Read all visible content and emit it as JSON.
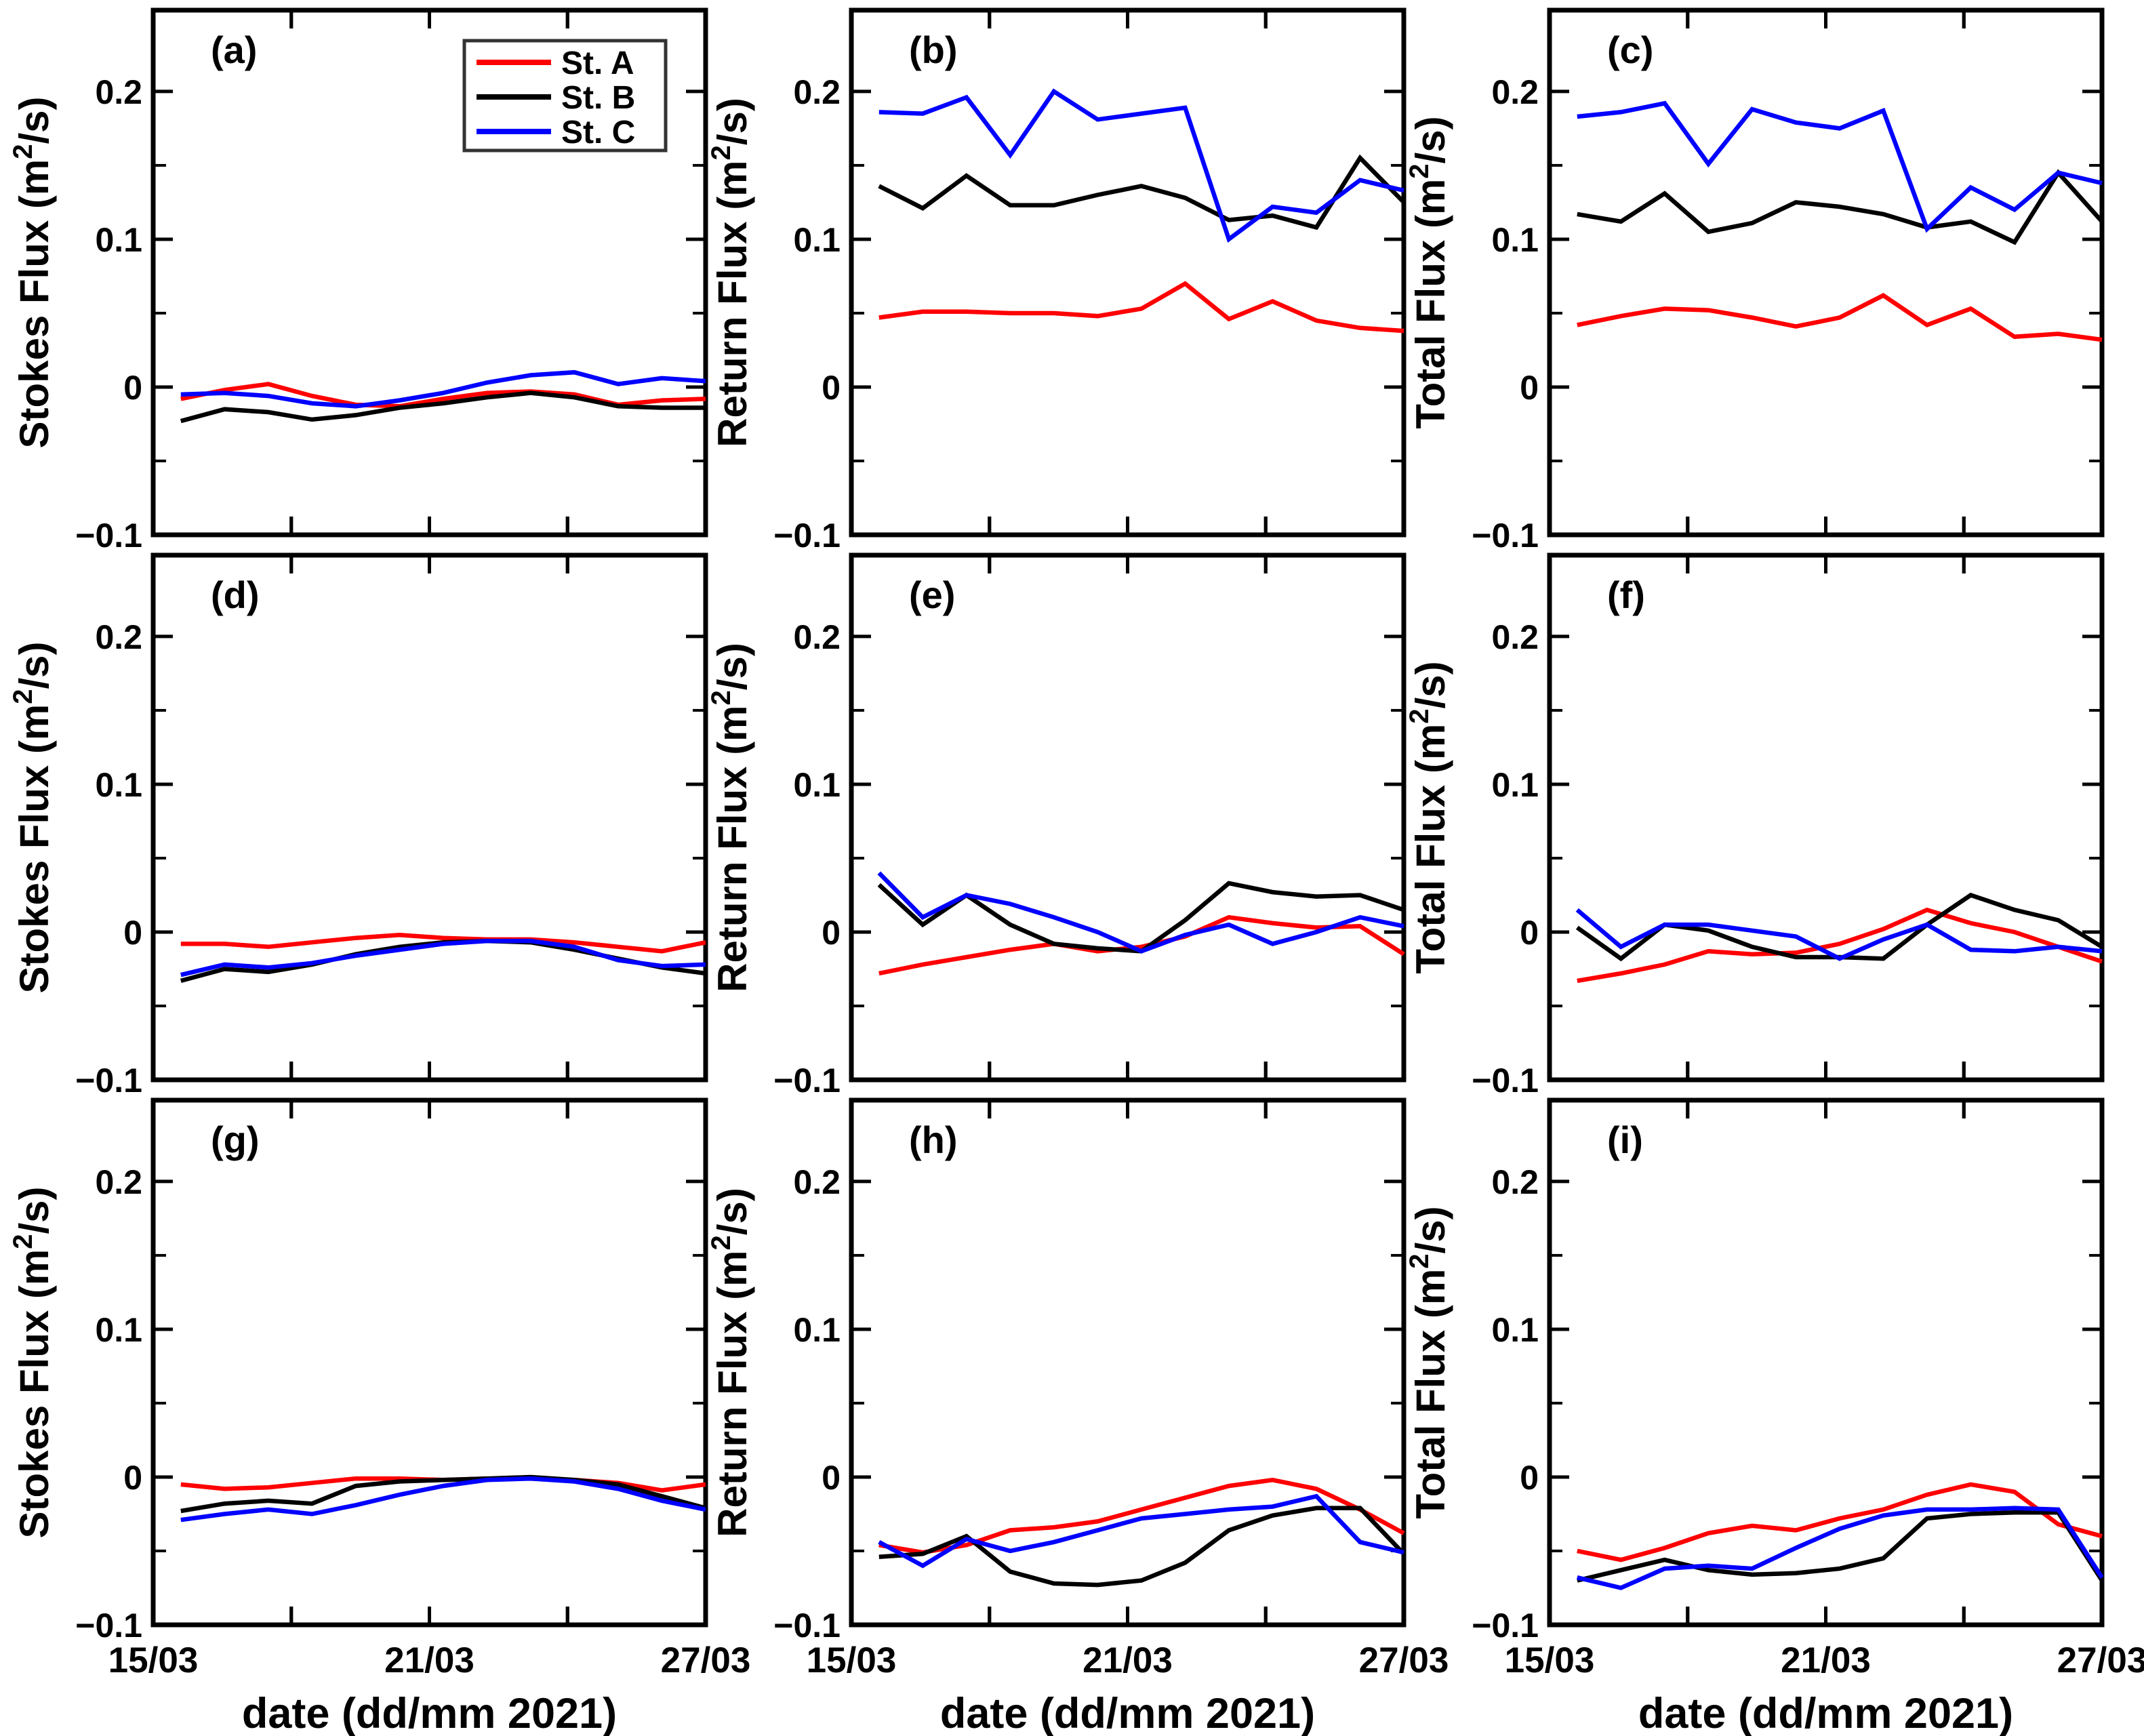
{
  "figure": {
    "background": "#ffffff",
    "axis_color": "#000000",
    "xlabel": "date (dd/mm 2021)",
    "x_tick_labels": [
      {
        "label": "15/03",
        "day": 0
      },
      {
        "label": "21/03",
        "day": 6
      },
      {
        "label": "27/03",
        "day": 12
      }
    ],
    "x_minor_tick_days": [
      3,
      9
    ],
    "x_major_tick_days": [
      3,
      6,
      9
    ],
    "y_ticks": [
      {
        "label": "0.2",
        "value": 0.2
      },
      {
        "label": "0.1",
        "value": 0.1
      },
      {
        "label": "0",
        "value": 0
      },
      {
        "label": "−0.1",
        "value": -0.1
      }
    ],
    "y_minor_tick_values": [
      0.15,
      0.05,
      -0.05
    ],
    "ylim": [
      -0.1,
      0.255
    ],
    "xlim_days": [
      0,
      12
    ],
    "grid": false
  },
  "legend": {
    "position": "top-right-panel-a",
    "entries": [
      {
        "label": "St. A",
        "color": "#ff0000"
      },
      {
        "label": "St. B",
        "color": "#000000"
      },
      {
        "label": "St. C",
        "color": "#0000ff"
      }
    ]
  },
  "chart_data": {
    "type": "line",
    "title": "",
    "xlabel": "date (dd/mm 2021)",
    "x_days": [
      0.6,
      1.55,
      2.5,
      3.45,
      4.4,
      5.35,
      6.3,
      7.25,
      8.2,
      9.15,
      10.1,
      11.05,
      12.0
    ],
    "x_axis_note": "days after 15/03/2021; ticks at 15/03, 18/03, 21/03, 24/03, 27/03; labels at 15/03, 21/03, 27/03",
    "units": "m²/s",
    "panels": [
      {
        "id": "a",
        "label": "(a)",
        "row": 0,
        "col": 0,
        "ylabel": "Stokes Flux (m²/s)",
        "show_legend": true,
        "series": [
          {
            "name": "St. A",
            "color": "#ff0000",
            "values": [
              -0.008,
              -0.002,
              0.002,
              -0.006,
              -0.012,
              -0.013,
              -0.008,
              -0.004,
              -0.003,
              -0.005,
              -0.012,
              -0.009,
              -0.008
            ]
          },
          {
            "name": "St. B",
            "color": "#000000",
            "values": [
              -0.023,
              -0.015,
              -0.017,
              -0.022,
              -0.019,
              -0.014,
              -0.011,
              -0.007,
              -0.004,
              -0.007,
              -0.013,
              -0.014,
              -0.014
            ]
          },
          {
            "name": "St. C",
            "color": "#0000ff",
            "values": [
              -0.005,
              -0.004,
              -0.006,
              -0.011,
              -0.013,
              -0.009,
              -0.004,
              0.003,
              0.008,
              0.01,
              0.002,
              0.006,
              0.004
            ]
          }
        ]
      },
      {
        "id": "b",
        "label": "(b)",
        "row": 0,
        "col": 1,
        "ylabel": "Return Flux (m²/s)",
        "show_legend": false,
        "series": [
          {
            "name": "St. A",
            "color": "#ff0000",
            "values": [
              0.047,
              0.051,
              0.051,
              0.05,
              0.05,
              0.048,
              0.053,
              0.07,
              0.046,
              0.058,
              0.045,
              0.04,
              0.038
            ]
          },
          {
            "name": "St. B",
            "color": "#000000",
            "values": [
              0.136,
              0.121,
              0.143,
              0.123,
              0.123,
              0.13,
              0.136,
              0.128,
              0.113,
              0.116,
              0.108,
              0.155,
              0.125
            ]
          },
          {
            "name": "St. C",
            "color": "#0000ff",
            "values": [
              0.186,
              0.185,
              0.196,
              0.157,
              0.2,
              0.181,
              0.185,
              0.189,
              0.1,
              0.122,
              0.118,
              0.14,
              0.133
            ]
          }
        ]
      },
      {
        "id": "c",
        "label": "(c)",
        "row": 0,
        "col": 2,
        "ylabel": "Total Flux (m²/s)",
        "show_legend": false,
        "series": [
          {
            "name": "St. A",
            "color": "#ff0000",
            "values": [
              0.042,
              0.048,
              0.053,
              0.052,
              0.047,
              0.041,
              0.047,
              0.062,
              0.042,
              0.053,
              0.034,
              0.036,
              0.032
            ]
          },
          {
            "name": "St. B",
            "color": "#000000",
            "values": [
              0.117,
              0.112,
              0.131,
              0.105,
              0.111,
              0.125,
              0.122,
              0.117,
              0.108,
              0.112,
              0.098,
              0.145,
              0.112
            ]
          },
          {
            "name": "St. C",
            "color": "#0000ff",
            "values": [
              0.183,
              0.186,
              0.192,
              0.151,
              0.188,
              0.179,
              0.175,
              0.187,
              0.107,
              0.135,
              0.12,
              0.145,
              0.138
            ]
          }
        ]
      },
      {
        "id": "d",
        "label": "(d)",
        "row": 1,
        "col": 0,
        "ylabel": "Stokes Flux (m²/s)",
        "show_legend": false,
        "series": [
          {
            "name": "St. A",
            "color": "#ff0000",
            "values": [
              -0.008,
              -0.008,
              -0.01,
              -0.007,
              -0.004,
              -0.002,
              -0.004,
              -0.005,
              -0.005,
              -0.007,
              -0.01,
              -0.013,
              -0.007
            ]
          },
          {
            "name": "St. B",
            "color": "#000000",
            "values": [
              -0.033,
              -0.025,
              -0.027,
              -0.022,
              -0.015,
              -0.01,
              -0.007,
              -0.006,
              -0.007,
              -0.012,
              -0.018,
              -0.024,
              -0.028
            ]
          },
          {
            "name": "St. C",
            "color": "#0000ff",
            "values": [
              -0.029,
              -0.022,
              -0.024,
              -0.021,
              -0.016,
              -0.012,
              -0.008,
              -0.006,
              -0.006,
              -0.01,
              -0.019,
              -0.023,
              -0.022
            ]
          }
        ]
      },
      {
        "id": "e",
        "label": "(e)",
        "row": 1,
        "col": 1,
        "ylabel": "Return Flux (m²/s)",
        "show_legend": false,
        "series": [
          {
            "name": "St. A",
            "color": "#ff0000",
            "values": [
              -0.028,
              -0.022,
              -0.017,
              -0.012,
              -0.008,
              -0.013,
              -0.01,
              -0.003,
              0.01,
              0.006,
              0.003,
              0.004,
              -0.015
            ]
          },
          {
            "name": "St. B",
            "color": "#000000",
            "values": [
              0.032,
              0.005,
              0.025,
              0.005,
              -0.008,
              -0.011,
              -0.013,
              0.008,
              0.033,
              0.027,
              0.024,
              0.025,
              0.015
            ]
          },
          {
            "name": "St. C",
            "color": "#0000ff",
            "values": [
              0.04,
              0.01,
              0.025,
              0.019,
              0.01,
              0.0,
              -0.013,
              -0.002,
              0.005,
              -0.008,
              0.0,
              0.01,
              0.004
            ]
          }
        ]
      },
      {
        "id": "f",
        "label": "(f)",
        "row": 1,
        "col": 2,
        "ylabel": "Total Flux (m²/s)",
        "show_legend": false,
        "series": [
          {
            "name": "St. A",
            "color": "#ff0000",
            "values": [
              -0.033,
              -0.028,
              -0.022,
              -0.013,
              -0.015,
              -0.014,
              -0.008,
              0.002,
              0.015,
              0.006,
              0.0,
              -0.01,
              -0.02
            ]
          },
          {
            "name": "St. B",
            "color": "#000000",
            "values": [
              0.003,
              -0.018,
              0.005,
              0.001,
              -0.01,
              -0.017,
              -0.017,
              -0.018,
              0.005,
              0.025,
              0.015,
              0.008,
              -0.01
            ]
          },
          {
            "name": "St. C",
            "color": "#0000ff",
            "values": [
              0.015,
              -0.01,
              0.005,
              0.005,
              0.001,
              -0.003,
              -0.018,
              -0.005,
              0.005,
              -0.012,
              -0.013,
              -0.01,
              -0.013
            ]
          }
        ]
      },
      {
        "id": "g",
        "label": "(g)",
        "row": 2,
        "col": 0,
        "ylabel": "Stokes Flux (m²/s)",
        "show_legend": false,
        "series": [
          {
            "name": "St. A",
            "color": "#ff0000",
            "values": [
              -0.005,
              -0.008,
              -0.007,
              -0.004,
              -0.001,
              -0.001,
              -0.002,
              -0.001,
              -0.001,
              -0.002,
              -0.004,
              -0.009,
              -0.005
            ]
          },
          {
            "name": "St. B",
            "color": "#000000",
            "values": [
              -0.023,
              -0.018,
              -0.016,
              -0.018,
              -0.006,
              -0.003,
              -0.002,
              -0.001,
              0.0,
              -0.002,
              -0.005,
              -0.013,
              -0.021
            ]
          },
          {
            "name": "St. C",
            "color": "#0000ff",
            "values": [
              -0.029,
              -0.025,
              -0.022,
              -0.025,
              -0.019,
              -0.012,
              -0.006,
              -0.002,
              -0.001,
              -0.003,
              -0.008,
              -0.016,
              -0.022
            ]
          }
        ]
      },
      {
        "id": "h",
        "label": "(h)",
        "row": 2,
        "col": 1,
        "ylabel": "Return Flux (m²/s)",
        "show_legend": false,
        "series": [
          {
            "name": "St. A",
            "color": "#ff0000",
            "values": [
              -0.046,
              -0.051,
              -0.046,
              -0.036,
              -0.034,
              -0.03,
              -0.022,
              -0.014,
              -0.006,
              -0.002,
              -0.008,
              -0.022,
              -0.038
            ]
          },
          {
            "name": "St. B",
            "color": "#000000",
            "values": [
              -0.054,
              -0.052,
              -0.04,
              -0.064,
              -0.072,
              -0.073,
              -0.07,
              -0.058,
              -0.036,
              -0.026,
              -0.021,
              -0.021,
              -0.052
            ]
          },
          {
            "name": "St. C",
            "color": "#0000ff",
            "values": [
              -0.044,
              -0.06,
              -0.042,
              -0.05,
              -0.044,
              -0.036,
              -0.028,
              -0.025,
              -0.022,
              -0.02,
              -0.013,
              -0.044,
              -0.051
            ]
          }
        ]
      },
      {
        "id": "i",
        "label": "(i)",
        "row": 2,
        "col": 2,
        "ylabel": "Total Flux (m²/s)",
        "show_legend": false,
        "series": [
          {
            "name": "St. A",
            "color": "#ff0000",
            "values": [
              -0.05,
              -0.056,
              -0.048,
              -0.038,
              -0.033,
              -0.036,
              -0.028,
              -0.022,
              -0.012,
              -0.005,
              -0.01,
              -0.032,
              -0.04
            ]
          },
          {
            "name": "St. B",
            "color": "#000000",
            "values": [
              -0.07,
              -0.063,
              -0.056,
              -0.063,
              -0.066,
              -0.065,
              -0.062,
              -0.055,
              -0.028,
              -0.025,
              -0.024,
              -0.024,
              -0.07
            ]
          },
          {
            "name": "St. C",
            "color": "#0000ff",
            "values": [
              -0.068,
              -0.075,
              -0.062,
              -0.06,
              -0.062,
              -0.048,
              -0.035,
              -0.026,
              -0.022,
              -0.022,
              -0.021,
              -0.022,
              -0.068
            ]
          }
        ]
      }
    ]
  }
}
